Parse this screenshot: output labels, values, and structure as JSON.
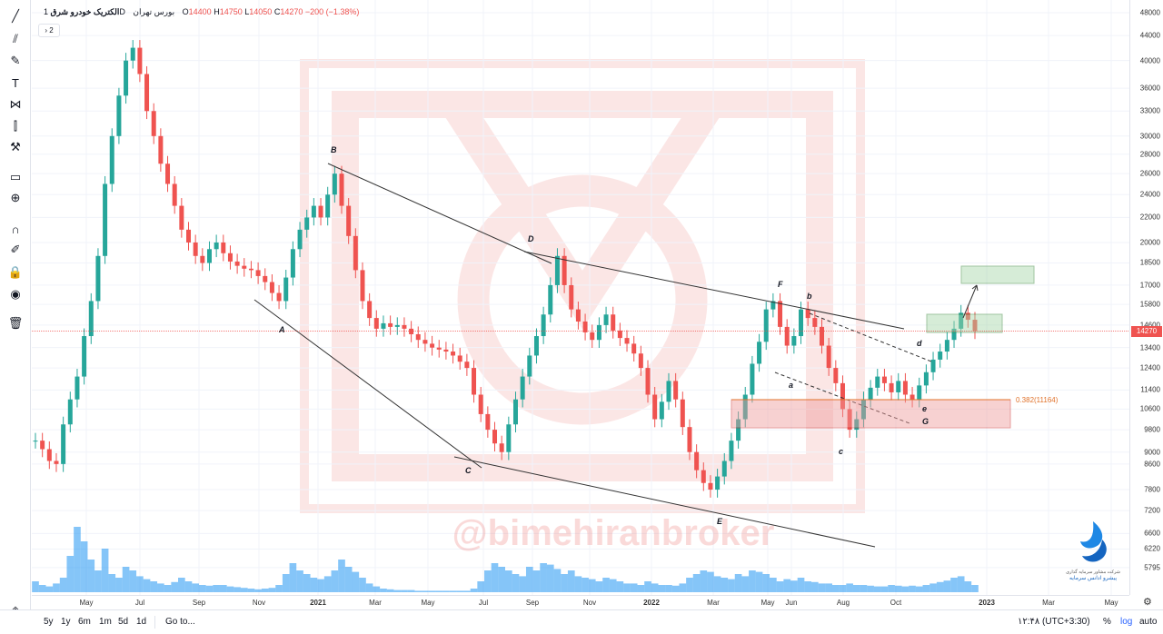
{
  "header": {
    "symbol": "الکتریک خودرو شرق",
    "interval": "1D",
    "exchange": "بورس تهران",
    "open_label": "O",
    "open": "14400",
    "high_label": "H",
    "high": "14750",
    "low_label": "L",
    "low": "14050",
    "close_label": "C",
    "close": "14270",
    "change": "−200 (−1.38%)",
    "indicator_count": "2"
  },
  "toolbar": {
    "icons": [
      "trend-line-icon",
      "fib-icon",
      "brush-icon",
      "text-icon",
      "pattern-icon",
      "measure-icon",
      "hammer-icon",
      "ruler-icon",
      "zoom-icon",
      "magnet-icon",
      "lock-draw-icon",
      "lock-icon",
      "eye-icon",
      "trash-icon"
    ]
  },
  "watermark": {
    "text": "@bimehiranbroker"
  },
  "logo": {
    "line1": "شرکت مشاور سرمایه گذاری",
    "line2": "پیشرو ادانس سرمایه"
  },
  "bottom_bar": {
    "ranges": [
      "5y",
      "1y",
      "6m",
      "1m",
      "5d",
      "1d"
    ],
    "goto": "Go to...",
    "clock": "۱۲:۴۸ (UTC+3:30)",
    "percent": "%",
    "log": "log",
    "auto": "auto"
  },
  "colors": {
    "up": "#26a69a",
    "down": "#ef5350",
    "volume": "#2196f3",
    "box_green": "#a5d6a7",
    "box_red": "#ef9a9a",
    "fib_label": "#e0722b"
  },
  "chart_data": {
    "type": "candlestick",
    "price_axis": {
      "scale": "log",
      "ticks": [
        48000,
        44000,
        40000,
        36000,
        33000,
        30000,
        28000,
        26000,
        24000,
        22000,
        20000,
        18500,
        17000,
        15800,
        14600,
        13400,
        12400,
        11400,
        10600,
        9800,
        9000,
        8600,
        7800,
        7200,
        6600,
        6220,
        5795
      ]
    },
    "time_axis": {
      "labels": [
        "May",
        "Jul",
        "Sep",
        "Nov",
        "2021",
        "Mar",
        "May",
        "Jul",
        "Sep",
        "Nov",
        "2022",
        "Mar",
        "May",
        "Jun",
        "Aug",
        "Oct",
        "2023",
        "Mar",
        "May"
      ]
    },
    "last_price": "14270",
    "fib_label": "0.382(11164)",
    "wave_labels": [
      "A",
      "B",
      "C",
      "D",
      "E",
      "F",
      "a",
      "b",
      "c",
      "d",
      "e",
      "G"
    ],
    "closes": [
      9400,
      9100,
      8700,
      8600,
      10000,
      11000,
      12000,
      14000,
      16000,
      19000,
      25000,
      30000,
      35000,
      40000,
      42000,
      38000,
      33000,
      30000,
      27000,
      25000,
      23000,
      21000,
      20000,
      19000,
      18500,
      19500,
      20000,
      19200,
      18600,
      18300,
      18100,
      18000,
      17600,
      17200,
      16500,
      16000,
      17500,
      19500,
      21000,
      22000,
      23000,
      22000,
      24000,
      26000,
      23000,
      20500,
      18000,
      16000,
      15000,
      14400,
      14700,
      14500,
      14600,
      14400,
      14100,
      13800,
      13600,
      13400,
      13300,
      13200,
      13000,
      12700,
      12400,
      11200,
      10400,
      9800,
      9300,
      9000,
      10000,
      11000,
      12000,
      13000,
      14000,
      15200,
      17000,
      19000,
      17000,
      15500,
      14800,
      14200,
      13800,
      14600,
      15200,
      14300,
      13900,
      13600,
      13100,
      12400,
      11200,
      10200,
      10900,
      11800,
      11000,
      9900,
      9000,
      8400,
      8000,
      7800,
      8200,
      8700,
      9400,
      10200,
      11200,
      12600,
      13700,
      15500,
      16000,
      14500,
      13500,
      14000,
      15500,
      15000,
      14500,
      13500,
      12400,
      11700,
      10600,
      9800,
      10200,
      11000,
      11500,
      12000,
      11700,
      11300,
      11800,
      11200,
      11000,
      11600,
      12200,
      12800,
      13200,
      13800,
      14400,
      15300,
      14900,
      14270
    ],
    "volumes": [
      0.15,
      0.1,
      0.08,
      0.12,
      0.2,
      0.5,
      0.9,
      0.7,
      0.45,
      0.3,
      0.6,
      0.25,
      0.2,
      0.35,
      0.3,
      0.22,
      0.18,
      0.15,
      0.12,
      0.1,
      0.14,
      0.2,
      0.15,
      0.12,
      0.1,
      0.09,
      0.1,
      0.1,
      0.08,
      0.07,
      0.06,
      0.05,
      0.04,
      0.05,
      0.06,
      0.1,
      0.25,
      0.4,
      0.3,
      0.25,
      0.2,
      0.18,
      0.22,
      0.3,
      0.45,
      0.35,
      0.28,
      0.2,
      0.12,
      0.08,
      0.05,
      0.04,
      0.03,
      0.03,
      0.03,
      0.02,
      0.02,
      0.02,
      0.02,
      0.02,
      0.02,
      0.02,
      0.02,
      0.05,
      0.15,
      0.3,
      0.4,
      0.35,
      0.3,
      0.25,
      0.22,
      0.35,
      0.3,
      0.4,
      0.38,
      0.32,
      0.25,
      0.3,
      0.22,
      0.2,
      0.18,
      0.15,
      0.2,
      0.18,
      0.15,
      0.12,
      0.12,
      0.1,
      0.15,
      0.12,
      0.1,
      0.1,
      0.09,
      0.12,
      0.2,
      0.25,
      0.3,
      0.28,
      0.22,
      0.2,
      0.18,
      0.25,
      0.22,
      0.3,
      0.28,
      0.25,
      0.2,
      0.15,
      0.18,
      0.16,
      0.2,
      0.15,
      0.14,
      0.12,
      0.12,
      0.1,
      0.1,
      0.12,
      0.1,
      0.1,
      0.09,
      0.08,
      0.08,
      0.1,
      0.09,
      0.08,
      0.09,
      0.08,
      0.1,
      0.12,
      0.14,
      0.16,
      0.2,
      0.22,
      0.15,
      0.1
    ]
  }
}
